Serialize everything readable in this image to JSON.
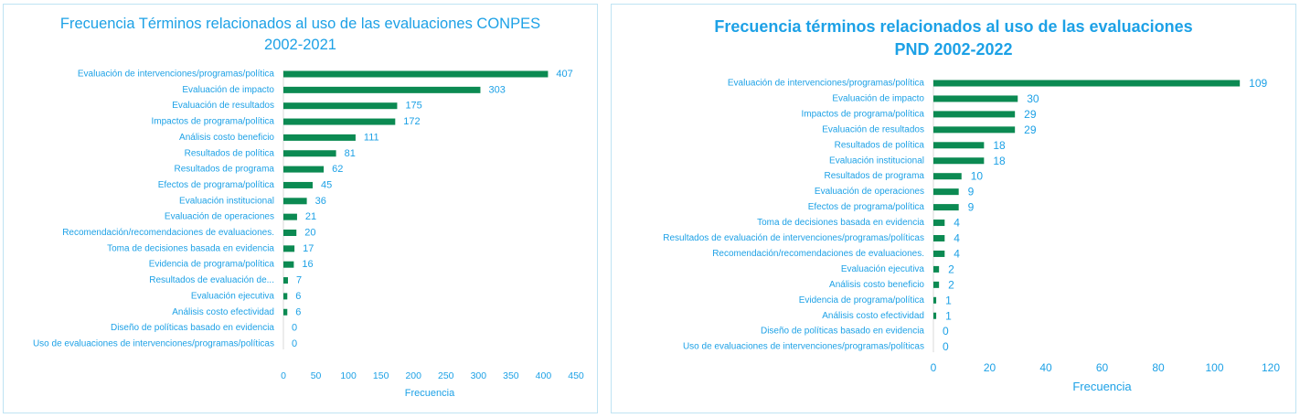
{
  "charts": {
    "left": {
      "title_line1": "Frecuencia Términos relacionados al uso de las evaluaciones CONPES",
      "title_line2": "2002-2021"
    },
    "right": {
      "title_line1": "Frecuencia términos relacionados al uso de las evaluaciones",
      "title_line2": "PND 2002-2022"
    }
  },
  "colors": {
    "bar": "#0b8a52",
    "text": "#1da1e6",
    "border": "#bfe3f3"
  },
  "chart_data": [
    {
      "type": "bar",
      "orientation": "horizontal",
      "title": "Frecuencia Términos relacionados al uso de las evaluaciones CONPES 2002-2021",
      "xlabel": "Frecuencia",
      "ylabel": "",
      "xlim": [
        0,
        450
      ],
      "xticks": [
        0,
        50,
        100,
        150,
        200,
        250,
        300,
        350,
        400,
        450
      ],
      "grid": false,
      "categories": [
        "Evaluación de intervenciones/programas/política",
        "Evaluación de impacto",
        "Evaluación de resultados",
        "Impactos de programa/política",
        "Análisis costo beneficio",
        "Resultados de política",
        "Resultados de programa",
        "Efectos de programa/política",
        "Evaluación institucional",
        "Evaluación de operaciones",
        "Recomendación/recomendaciones de evaluaciones.",
        "Toma de decisiones basada en evidencia",
        "Evidencia de programa/política",
        "Resultados de evaluación de...",
        "Evaluación ejecutiva",
        "Análisis costo efectividad",
        "Diseño de políticas basado en evidencia",
        "Uso de evaluaciones de intervenciones/programas/políticas"
      ],
      "values": [
        407,
        303,
        175,
        172,
        111,
        81,
        62,
        45,
        36,
        21,
        20,
        17,
        16,
        7,
        6,
        6,
        0,
        0
      ]
    },
    {
      "type": "bar",
      "orientation": "horizontal",
      "title": "Frecuencia términos relacionados al uso de las evaluaciones PND 2002-2022",
      "xlabel": "Frecuencia",
      "ylabel": "",
      "xlim": [
        0,
        120
      ],
      "xticks": [
        0,
        20,
        40,
        60,
        80,
        100,
        120
      ],
      "grid": false,
      "categories": [
        "Evaluación de intervenciones/programas/política",
        "Evaluación de impacto",
        "Impactos de programa/política",
        "Evaluación de resultados",
        "Resultados de política",
        "Evaluación institucional",
        "Resultados de programa",
        "Evaluación de operaciones",
        "Efectos de programa/política",
        "Toma de decisiones basada en evidencia",
        "Resultados de evaluación de intervenciones/programas/políticas",
        "Recomendación/recomendaciones de evaluaciones.",
        "Evaluación ejecutiva",
        "Análisis costo beneficio",
        "Evidencia de programa/política",
        "Análisis costo efectividad",
        "Diseño de políticas basado en evidencia",
        "Uso de evaluaciones de intervenciones/programas/políticas"
      ],
      "values": [
        109,
        30,
        29,
        29,
        18,
        18,
        10,
        9,
        9,
        4,
        4,
        4,
        2,
        2,
        1,
        1,
        0,
        0
      ]
    }
  ]
}
